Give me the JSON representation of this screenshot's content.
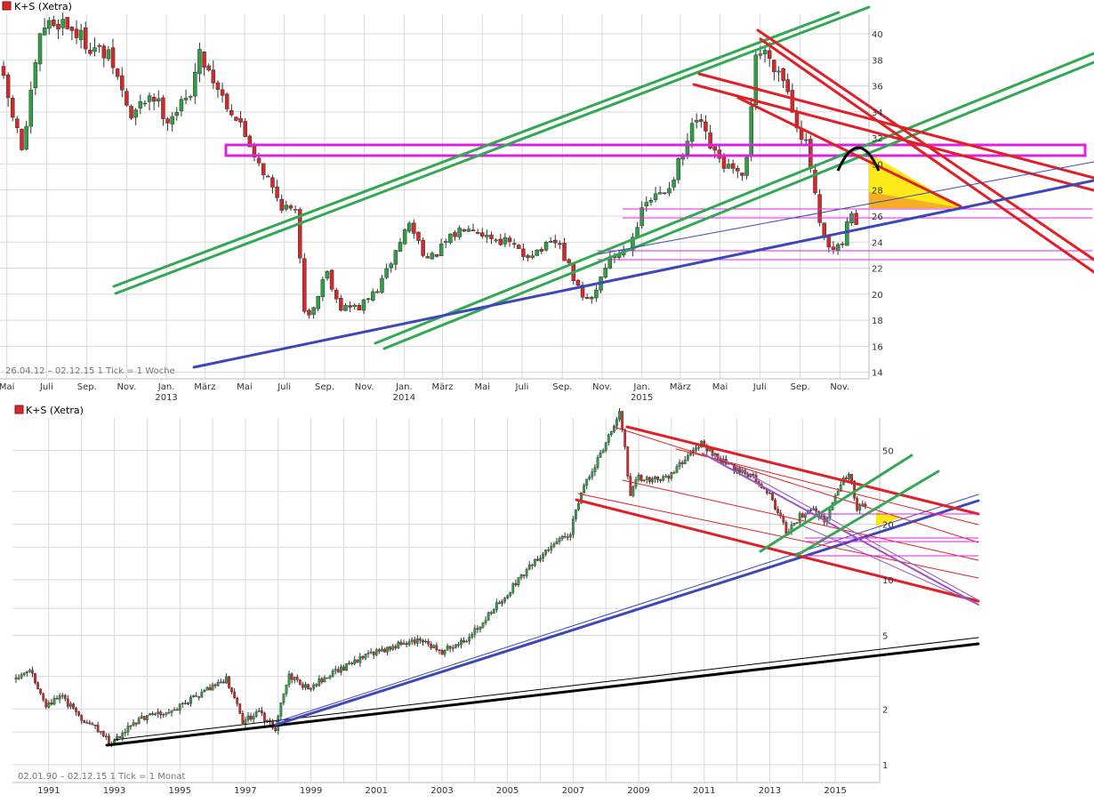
{
  "colors": {
    "up": "#2ea043",
    "down": "#d62828",
    "trend_green": "#33a852",
    "trend_red": "#e01f26",
    "trend_blue": "#3e47b8",
    "magenta": "#e020e0",
    "purple": "#9a55c4",
    "black": "#000000",
    "yellow": "#ffe800",
    "orange": "#f5a623",
    "grid": "#d9d9d9",
    "axis_text": "#333333",
    "info_text": "#777777"
  },
  "chart_data": [
    {
      "type": "candlestick",
      "title": "K+S (Xetra)",
      "legend_icon": "red-square-icon",
      "info": "26.04.12 – 02.12.15   1 Tick = 1 Woche",
      "y_scale": "linear",
      "ylim": [
        13.5,
        41.5
      ],
      "y_ticks": [
        14,
        16,
        18,
        20,
        22,
        24,
        26,
        28,
        30,
        32,
        34,
        36,
        38,
        40
      ],
      "x_ticks": [
        "Mai",
        "Juli",
        "Sep.",
        "Nov.",
        "Jan.",
        "März",
        "Mai",
        "Juli",
        "Sep.",
        "Nov.",
        "Jan.",
        "März",
        "Mai",
        "Juli",
        "Sep.",
        "Nov.",
        "Jan.",
        "März",
        "Mai",
        "Juli",
        "Sep.",
        "Nov."
      ],
      "year_labels": [
        "2013",
        "2014",
        "2015"
      ],
      "x_range": [
        "2012-04-26",
        "2015-12-02"
      ],
      "price_path": [
        [
          "2012-04-26",
          37.5
        ],
        [
          "2012-06-01",
          31.0
        ],
        [
          "2012-07-01",
          40.5
        ],
        [
          "2012-08-01",
          41.0
        ],
        [
          "2012-09-15",
          39.0
        ],
        [
          "2012-10-15",
          38.0
        ],
        [
          "2012-11-15",
          33.5
        ],
        [
          "2012-12-15",
          35.5
        ],
        [
          "2013-01-10",
          33.5
        ],
        [
          "2013-02-10",
          35.0
        ],
        [
          "2013-03-01",
          38.5
        ],
        [
          "2013-04-01",
          35.5
        ],
        [
          "2013-05-01",
          33.0
        ],
        [
          "2013-06-01",
          30.0
        ],
        [
          "2013-07-01",
          27.0
        ],
        [
          "2013-07-29",
          26.0
        ],
        [
          "2013-08-05",
          19.0
        ],
        [
          "2013-08-20",
          18.5
        ],
        [
          "2013-09-10",
          22.0
        ],
        [
          "2013-10-01",
          19.0
        ],
        [
          "2013-11-01",
          19.0
        ],
        [
          "2013-12-01",
          20.5
        ],
        [
          "2014-01-15",
          25.5
        ],
        [
          "2014-02-15",
          22.5
        ],
        [
          "2014-03-15",
          24.0
        ],
        [
          "2014-04-15",
          25.5
        ],
        [
          "2014-05-15",
          24.5
        ],
        [
          "2014-06-15",
          24.0
        ],
        [
          "2014-07-10",
          23.0
        ],
        [
          "2014-08-10",
          23.5
        ],
        [
          "2014-09-01",
          24.0
        ],
        [
          "2014-10-10",
          19.5
        ],
        [
          "2014-10-25",
          19.8
        ],
        [
          "2014-11-15",
          22.5
        ],
        [
          "2014-12-15",
          23.5
        ],
        [
          "2015-01-15",
          27.0
        ],
        [
          "2015-02-15",
          28.0
        ],
        [
          "2015-03-15",
          31.0
        ],
        [
          "2015-04-01",
          33.5
        ],
        [
          "2015-05-01",
          30.5
        ],
        [
          "2015-05-25",
          29.5
        ],
        [
          "2015-06-15",
          28.5
        ],
        [
          "2015-07-01",
          38.5
        ],
        [
          "2015-07-20",
          38.5
        ],
        [
          "2015-08-15",
          36.5
        ],
        [
          "2015-09-01",
          33.5
        ],
        [
          "2015-09-20",
          31.0
        ],
        [
          "2015-10-10",
          24.5
        ],
        [
          "2015-10-25",
          23.2
        ],
        [
          "2015-11-10",
          23.5
        ],
        [
          "2015-11-25",
          26.5
        ],
        [
          "2015-12-02",
          25.5
        ]
      ]
    },
    {
      "type": "candlestick",
      "title": "K+S (Xetra)",
      "legend_icon": "red-square-icon",
      "info": "02.01.90 – 02.12.15   1 Tick = 1 Monat",
      "y_scale": "log",
      "ylim": [
        0.8,
        75
      ],
      "y_ticks": [
        1,
        2,
        5,
        10,
        20,
        50
      ],
      "x_ticks": [
        "1991",
        "1993",
        "1995",
        "1997",
        "1999",
        "2001",
        "2003",
        "2005",
        "2007",
        "2009",
        "2011",
        "2013",
        "2015"
      ],
      "x_range": [
        1990.0,
        2015.92
      ],
      "price_path": [
        [
          1990.0,
          2.9
        ],
        [
          1990.5,
          3.2
        ],
        [
          1991.0,
          2.1
        ],
        [
          1991.5,
          2.3
        ],
        [
          1992.0,
          1.8
        ],
        [
          1992.5,
          1.6
        ],
        [
          1993.0,
          1.3
        ],
        [
          1993.5,
          1.6
        ],
        [
          1994.0,
          1.8
        ],
        [
          1995.0,
          2.0
        ],
        [
          1996.0,
          2.6
        ],
        [
          1996.5,
          2.9
        ],
        [
          1997.0,
          1.7
        ],
        [
          1997.5,
          1.9
        ],
        [
          1998.0,
          1.55
        ],
        [
          1998.4,
          3.0
        ],
        [
          1999.0,
          2.6
        ],
        [
          2000.0,
          3.3
        ],
        [
          2001.0,
          4.0
        ],
        [
          2002.0,
          4.6
        ],
        [
          2002.5,
          4.8
        ],
        [
          2003.0,
          4.0
        ],
        [
          2003.5,
          4.5
        ],
        [
          2004.0,
          5.0
        ],
        [
          2005.0,
          8.0
        ],
        [
          2006.0,
          13.0
        ],
        [
          2007.0,
          18.0
        ],
        [
          2008.0,
          50.0
        ],
        [
          2008.5,
          80.0
        ],
        [
          2008.8,
          27.0
        ],
        [
          2009.0,
          36.0
        ],
        [
          2009.5,
          35.0
        ],
        [
          2010.0,
          36.0
        ],
        [
          2011.0,
          55.0
        ],
        [
          2011.5,
          45.0
        ],
        [
          2012.0,
          40.0
        ],
        [
          2012.5,
          37.0
        ],
        [
          2013.0,
          30.0
        ],
        [
          2013.6,
          18.0
        ],
        [
          2014.0,
          22.0
        ],
        [
          2014.5,
          24.0
        ],
        [
          2014.8,
          19.5
        ],
        [
          2015.0,
          27.0
        ],
        [
          2015.5,
          38.0
        ],
        [
          2015.75,
          24.0
        ],
        [
          2015.92,
          25.5
        ]
      ]
    }
  ]
}
